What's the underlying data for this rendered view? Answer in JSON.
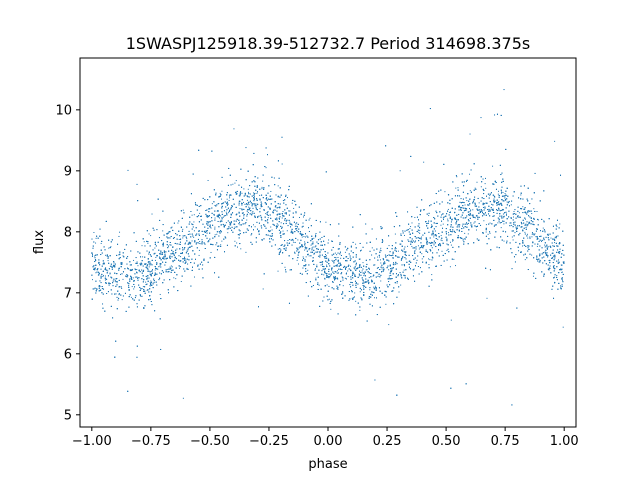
{
  "chart_data": {
    "type": "scatter",
    "title": "1SWASPJ125918.39-512732.7 Period 314698.375s",
    "xlabel": "phase",
    "ylabel": "flux",
    "xlim": [
      -1.05,
      1.05
    ],
    "ylim": [
      4.8,
      10.85
    ],
    "x_ticks": [
      -1.0,
      -0.75,
      -0.5,
      -0.25,
      0.0,
      0.25,
      0.5,
      0.75,
      1.0
    ],
    "x_tick_labels": [
      "−1.00",
      "−0.75",
      "−0.50",
      "−0.25",
      "0.00",
      "0.25",
      "0.50",
      "0.75",
      "1.00"
    ],
    "y_ticks": [
      5,
      6,
      7,
      8,
      9,
      10
    ],
    "y_tick_labels": [
      "5",
      "6",
      "7",
      "8",
      "9",
      "10"
    ],
    "grid": false,
    "legend": "none",
    "point_color": "#1f77b4",
    "series": [
      {
        "trend": {
          "x": [
            -1.0,
            -0.95,
            -0.9,
            -0.85,
            -0.8,
            -0.75,
            -0.7,
            -0.65,
            -0.6,
            -0.55,
            -0.5,
            -0.45,
            -0.4,
            -0.35,
            -0.3,
            -0.25,
            -0.2,
            -0.15,
            -0.1,
            -0.05,
            0.0,
            0.05,
            0.1,
            0.15,
            0.2,
            0.25,
            0.3,
            0.35,
            0.4,
            0.45,
            0.5,
            0.55,
            0.6,
            0.65,
            0.7,
            0.75,
            0.8,
            0.85,
            0.9,
            0.95,
            1.0
          ],
          "y": [
            7.45,
            7.35,
            7.3,
            7.28,
            7.3,
            7.4,
            7.55,
            7.7,
            7.85,
            7.98,
            8.1,
            8.22,
            8.32,
            8.38,
            8.4,
            8.35,
            8.2,
            8.0,
            7.8,
            7.6,
            7.45,
            7.35,
            7.3,
            7.28,
            7.3,
            7.4,
            7.55,
            7.7,
            7.85,
            7.98,
            8.1,
            8.22,
            8.32,
            8.38,
            8.4,
            8.35,
            8.2,
            8.0,
            7.8,
            7.6,
            7.45
          ]
        },
        "scatter_sd": 0.28,
        "n_points": 9000
      }
    ]
  }
}
